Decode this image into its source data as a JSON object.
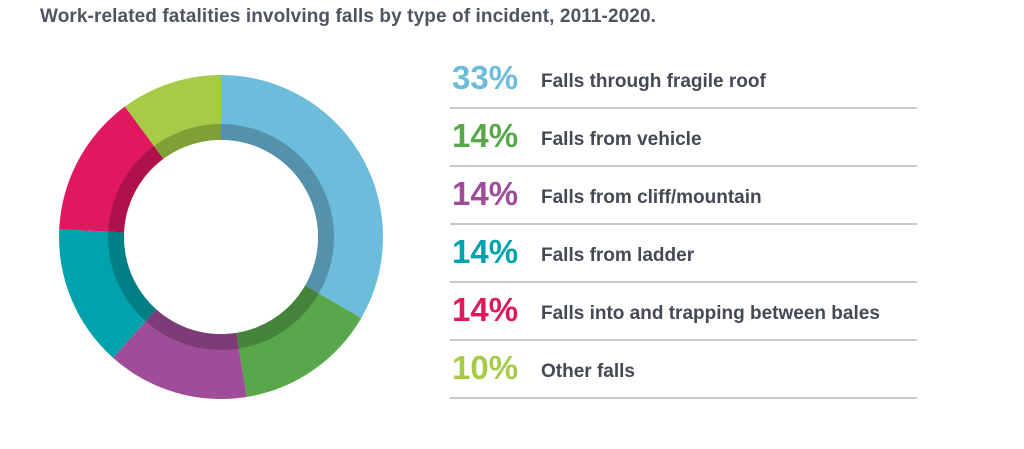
{
  "title": "Work-related fatalities involving falls by type of incident, 2011-2020.",
  "chart_data": {
    "type": "pie",
    "title": "Work-related fatalities involving falls by type of incident, 2011-2020.",
    "categories": [
      "Falls through fragile roof",
      "Falls from vehicle",
      "Falls from cliff/mountain",
      "Falls from ladder",
      "Falls into and trapping between bales",
      "Other falls"
    ],
    "values": [
      33,
      14,
      14,
      14,
      14,
      10
    ],
    "value_labels": [
      "33%",
      "14%",
      "14%",
      "14%",
      "14%",
      "10%"
    ],
    "colors": [
      "#6cbcdc",
      "#58a84b",
      "#a04d99",
      "#00a3ab",
      "#e0185f",
      "#a6cc47"
    ],
    "legend": "right"
  }
}
